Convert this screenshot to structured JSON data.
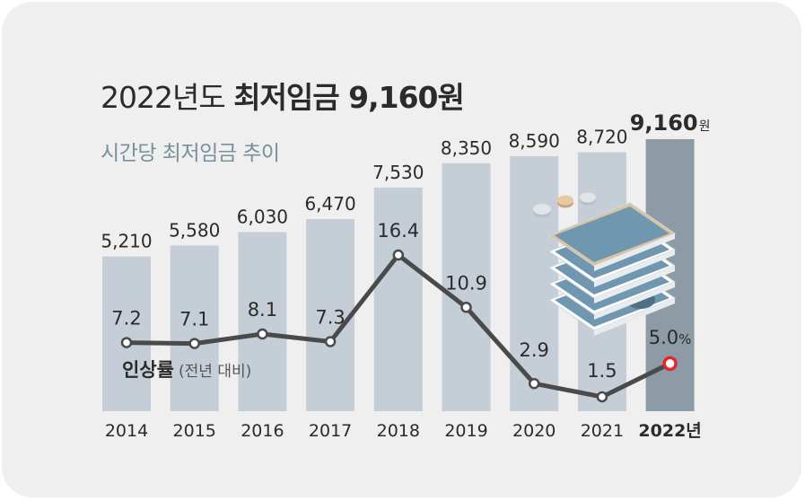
{
  "header": {
    "title_light": "2022년도",
    "title_bold": "최저임금 9,160원",
    "subtitle": "시간당 최저임금 추이"
  },
  "line_legend": {
    "label": "인상률",
    "sublabel": "(전년 대비)"
  },
  "colors": {
    "card_bg": "#efefef",
    "bar": "#c5ced6",
    "bar_highlight": "#8d9ba6",
    "line": "#4a4a4a",
    "marker_highlight": "#e3262d",
    "subtitle": "#7a8f9c",
    "text": "#2b2b2b"
  },
  "chart_data": {
    "type": "bar",
    "categories": [
      "2014",
      "2015",
      "2016",
      "2017",
      "2018",
      "2019",
      "2020",
      "2021",
      "2022년"
    ],
    "value_labels": [
      "5,210",
      "5,580",
      "6,030",
      "6,470",
      "7,530",
      "8,350",
      "8,590",
      "8,720",
      "9,160"
    ],
    "last_value_unit": "원",
    "series": [
      {
        "type": "bar",
        "values": [
          5210,
          5580,
          6030,
          6470,
          7530,
          8350,
          8590,
          8720,
          9160
        ]
      },
      {
        "type": "line",
        "name": "인상률",
        "values": [
          7.2,
          7.1,
          8.1,
          7.3,
          16.4,
          10.9,
          2.9,
          1.5,
          5.0
        ],
        "value_labels": [
          "7.2",
          "7.1",
          "8.1",
          "7.3",
          "16.4",
          "10.9",
          "2.9",
          "1.5",
          "5.0"
        ],
        "last_value_unit": "%"
      }
    ],
    "highlight_index": 8,
    "grid": false
  }
}
